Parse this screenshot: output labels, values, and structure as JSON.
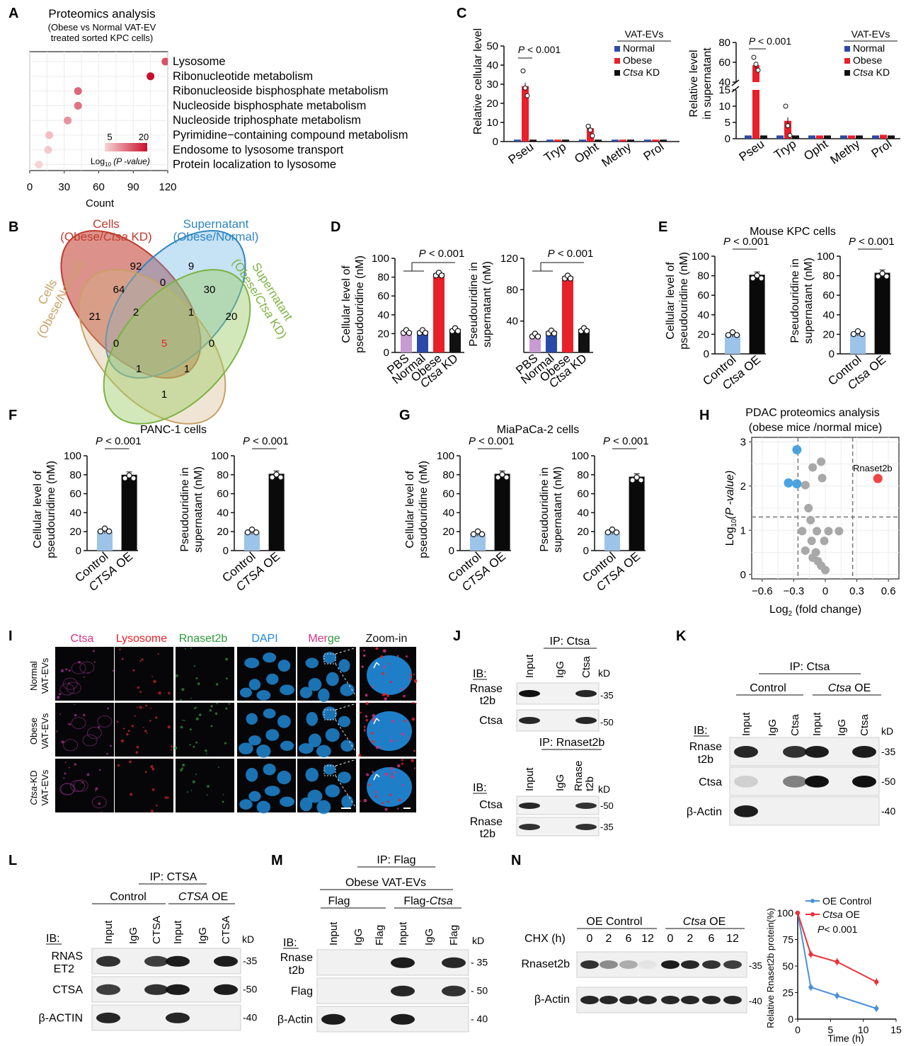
{
  "panels": {
    "A": "A",
    "B": "B",
    "C": "C",
    "D": "D",
    "E": "E",
    "F": "F",
    "G": "G",
    "H": "H",
    "I": "I",
    "J": "J",
    "K": "K",
    "L": "L",
    "M": "M",
    "N": "N"
  },
  "panelA": {
    "title": "Proteomics analysis",
    "subtitle1": "(Obese vs Normal VAT-EV",
    "subtitle2": "treated sorted KPC cells)",
    "xlabel": "Count",
    "legend_ticks": [
      "5",
      "20"
    ],
    "legend_label_pre": "Log",
    "legend_label_sub": "10",
    "legend_label_post": " (P -value)",
    "colors": {
      "low": "#f7d4d4",
      "high": "#c8102e"
    },
    "chart_data": {
      "type": "scatter",
      "xlim": [
        0,
        120
      ],
      "xticks": [
        "0",
        "30",
        "60",
        "90",
        "120"
      ],
      "categories": [
        "Lysosome",
        "Ribonucleotide metabolism",
        "Ribonucleoside bisphosphate metabolism",
        "Nucleoside bisphosphate metabolism",
        "Nucleoside triphosphate metabolism",
        "Pyrimidine−containing compound metabolism",
        "Endosome to lysosome transport",
        "Protein localization to lysosome"
      ],
      "x": [
        118,
        105,
        42,
        42,
        33,
        17,
        16,
        8
      ],
      "neglog10p": [
        14,
        20,
        12,
        11,
        8,
        4,
        3,
        2
      ]
    }
  },
  "panelB": {
    "sets": [
      {
        "label1": "Cells",
        "label2_pre": "(Obese/",
        "label2_italic": "Ctsa",
        "label2_post": " KD)",
        "color": "#c0392b"
      },
      {
        "label1": "Supernatant",
        "label2_pre": "(Obese/Normal)",
        "label2_italic": "",
        "label2_post": "",
        "color": "#2e86c1"
      },
      {
        "label1": "Cells",
        "label2_pre": "(Obese/Normal)",
        "label2_italic": "",
        "label2_post": "",
        "color": "#c8a165"
      },
      {
        "label1": "Supernatant",
        "label2_pre": "(Obese/",
        "label2_italic": "Ctsa",
        "label2_post": " KD)",
        "color": "#7cb342"
      }
    ],
    "counts": [
      "92",
      "9",
      "64",
      "0",
      "30",
      "21",
      "2",
      "1",
      "20",
      "0",
      "5",
      "0",
      "1",
      "1",
      "1"
    ]
  },
  "panelC": {
    "legend_title": "VAT-EVs",
    "legend": [
      "Normal",
      "Obese"
    ],
    "legend_kd_italic": "Ctsa",
    "legend_kd_post": " KD",
    "pval": "P < 0.001",
    "colors": {
      "normal": "#2b4aa8",
      "obese": "#e8202a",
      "kd": "#111111"
    },
    "left": {
      "ylabel": "Relative cellular level",
      "chart_data": {
        "type": "bar",
        "ylim": [
          0,
          50
        ],
        "yticks": [
          "0",
          "10",
          "20",
          "30",
          "40",
          "50"
        ],
        "categories": [
          "Pseu",
          "Tryp",
          "Opht",
          "Methy",
          "Prol"
        ],
        "series": [
          {
            "name": "Normal",
            "values": [
              1,
              1,
              1,
              1,
              1
            ]
          },
          {
            "name": "Obese",
            "values": [
              29,
              1,
              7,
              1,
              1
            ]
          },
          {
            "name": "Ctsa KD",
            "values": [
              1,
              1,
              1,
              1,
              1
            ]
          }
        ]
      }
    },
    "right": {
      "ylabel1": "Relative level",
      "ylabel2": "in supernatant",
      "chart_data": {
        "type": "bar",
        "ylim_broken": [
          [
            0,
            15
          ],
          [
            40,
            80
          ]
        ],
        "yticks": [
          "0",
          "5",
          "10",
          "15",
          "40",
          "60",
          "80"
        ],
        "categories": [
          "Pseu",
          "Tryp",
          "Opht",
          "Methy",
          "Prol"
        ],
        "series": [
          {
            "name": "Normal",
            "values": [
              1,
              1,
              1,
              1,
              1
            ]
          },
          {
            "name": "Obese",
            "values": [
              57,
              5.5,
              1,
              1,
              1.2
            ]
          },
          {
            "name": "Ctsa KD",
            "values": [
              1,
              1,
              1,
              1,
              1
            ]
          }
        ]
      }
    }
  },
  "panelD": {
    "pval": "P < 0.001",
    "categories": [
      "PBS",
      "Normal",
      "Obese"
    ],
    "cat_kd_italic": "Ctsa",
    "cat_kd_post": " KD",
    "colors": [
      "#c89bd2",
      "#2b4aa8",
      "#e8202a",
      "#111111"
    ],
    "left": {
      "ylabel1": "Cellular level of",
      "ylabel2": "pseudouridine (nM)",
      "chart_data": {
        "type": "bar",
        "ylim": [
          0,
          100
        ],
        "yticks": [
          "0",
          "20",
          "40",
          "60",
          "80",
          "100"
        ],
        "values": [
          23,
          23,
          84,
          25
        ]
      }
    },
    "right": {
      "ylabel1": "Pseudouridine in",
      "ylabel2": "supernatant (nM)",
      "chart_data": {
        "type": "bar",
        "ylim": [
          0,
          120
        ],
        "yticks": [
          "40",
          "80",
          "120"
        ],
        "values": [
          23,
          27,
          97,
          30
        ]
      }
    }
  },
  "panelE": {
    "title": "Mouse KPC cells",
    "pval": "P < 0.001",
    "cat_control": "Control",
    "cat_oe_italic": "Ctsa",
    "cat_oe_post": " OE",
    "left": {
      "ylabel1": "Cellular level of",
      "ylabel2": "pseudouridine (nM)",
      "chart_data": {
        "type": "bar",
        "ylim": [
          0,
          100
        ],
        "yticks": [
          "0",
          "20",
          "40",
          "60",
          "80",
          "100"
        ],
        "values": [
          20,
          81
        ]
      }
    },
    "right": {
      "ylabel1": "Pseudouridine in",
      "ylabel2": "supernatant (nM)",
      "chart_data": {
        "type": "bar",
        "ylim": [
          0,
          100
        ],
        "yticks": [
          "0",
          "20",
          "40",
          "60",
          "80",
          "100"
        ],
        "values": [
          21,
          83
        ]
      }
    }
  },
  "panelF": {
    "title": "PANC-1 cells",
    "pval": "P < 0.001",
    "cat_control": "Control",
    "cat_oe_italic": "CTSA",
    "cat_oe_post": " OE",
    "left": {
      "ylabel1": "Cellular level of",
      "ylabel2": "pseudouridine (nM)",
      "chart_data": {
        "type": "bar",
        "ylim": [
          0,
          100
        ],
        "yticks": [
          "0",
          "20",
          "40",
          "60",
          "80",
          "100"
        ],
        "values": [
          21,
          80
        ]
      }
    },
    "right": {
      "ylabel1": "Pseudouridine in",
      "ylabel2": "supernatant (nM)",
      "chart_data": {
        "type": "bar",
        "ylim": [
          0,
          100
        ],
        "yticks": [
          "0",
          "20",
          "40",
          "60",
          "80",
          "100"
        ],
        "values": [
          20,
          81
        ]
      }
    }
  },
  "panelG": {
    "title": "MiaPaCa-2  cells",
    "pval": "P < 0.001",
    "cat_control": "Control",
    "cat_oe_italic": "CTSA",
    "cat_oe_post": " OE",
    "left": {
      "ylabel1": "Cellular level of",
      "ylabel2": "pseudouridine (nM)",
      "chart_data": {
        "type": "bar",
        "ylim": [
          0,
          100
        ],
        "yticks": [
          "0",
          "20",
          "40",
          "60",
          "80",
          "100"
        ],
        "values": [
          18,
          81
        ]
      }
    },
    "right": {
      "ylabel1": "Pseudouridine in",
      "ylabel2": "supernatant (nM)",
      "chart_data": {
        "type": "bar",
        "ylim": [
          0,
          100
        ],
        "yticks": [
          "0",
          "20",
          "40",
          "60",
          "80",
          "100"
        ],
        "values": [
          20,
          78
        ]
      }
    }
  },
  "panelH": {
    "title1": "PDAC proteomics analysis",
    "title2": "(obese mice /normal mice)",
    "xlabel_pre": "Log",
    "xlabel_sub": "2",
    "xlabel_post": " (fold change)",
    "ylabel_pre": "Log",
    "ylabel_sub": "10",
    "ylabel_post": "(P -value)",
    "annotation": "Rnaset2b",
    "colors": {
      "down": "#4aa3df",
      "ns": "#a8a8a8",
      "up": "#ee4444"
    },
    "chart_data": {
      "type": "scatter",
      "xlim": [
        -0.7,
        0.7
      ],
      "ylim": [
        -0.1,
        3.1
      ],
      "xticks": [
        "−0.6",
        "−0.3",
        "0",
        "0.3",
        "0.6"
      ],
      "yticks": [
        "0",
        "1",
        "2",
        "3"
      ],
      "thresholds": {
        "x": [
          -0.26,
          0.26
        ],
        "y": 1.3
      },
      "points": [
        {
          "x": -0.27,
          "y": 2.82,
          "group": "down"
        },
        {
          "x": -0.35,
          "y": 2.07,
          "group": "down"
        },
        {
          "x": -0.27,
          "y": 2.05,
          "group": "down"
        },
        {
          "x": 0.5,
          "y": 2.17,
          "group": "up"
        },
        {
          "x": -0.12,
          "y": 2.42,
          "group": "ns"
        },
        {
          "x": -0.04,
          "y": 2.55,
          "group": "ns"
        },
        {
          "x": -0.19,
          "y": 2.02,
          "group": "ns"
        },
        {
          "x": -0.03,
          "y": 2.18,
          "group": "ns"
        },
        {
          "x": -0.16,
          "y": 1.5,
          "group": "ns"
        },
        {
          "x": -0.14,
          "y": 1.23,
          "group": "ns"
        },
        {
          "x": -0.22,
          "y": 0.98,
          "group": "ns"
        },
        {
          "x": -0.08,
          "y": 0.98,
          "group": "ns"
        },
        {
          "x": 0.03,
          "y": 0.98,
          "group": "ns"
        },
        {
          "x": 0.13,
          "y": 0.98,
          "group": "ns"
        },
        {
          "x": -0.13,
          "y": 0.76,
          "group": "ns"
        },
        {
          "x": -0.01,
          "y": 0.76,
          "group": "ns"
        },
        {
          "x": -0.19,
          "y": 0.54,
          "group": "ns"
        },
        {
          "x": -0.09,
          "y": 0.5,
          "group": "ns"
        },
        {
          "x": -0.12,
          "y": 0.38,
          "group": "ns"
        },
        {
          "x": -0.07,
          "y": 0.3,
          "group": "ns"
        },
        {
          "x": -0.04,
          "y": 0.2,
          "group": "ns"
        },
        {
          "x": 0.0,
          "y": 0.1,
          "group": "ns"
        }
      ]
    }
  },
  "panelI": {
    "headers": [
      "Ctsa",
      "Lysosome",
      "Rnaset2b",
      "DAPI",
      "Mer",
      "ge",
      "Zoom-in"
    ],
    "header_colors": [
      "#d63384",
      "#e8202a",
      "#2e9b3e",
      "#1e88e5",
      "#d63384",
      "#2e9b3e",
      "#111111"
    ],
    "rows": [
      {
        "l1_italic": "",
        "l1": "Normal",
        "l2": "VAT-EVs"
      },
      {
        "l1_italic": "",
        "l1": "Obese",
        "l2": "VAT-EVs"
      },
      {
        "l1_italic": "Ctsa",
        "l1": "-KD",
        "l2": "VAT-EVs"
      }
    ]
  },
  "panelJ": {
    "top": {
      "ip": "IP: Ctsa",
      "lanes": [
        "Input",
        "IgG",
        "Ctsa"
      ],
      "ib": "IB:",
      "bands": [
        {
          "l1": "Rnase",
          "l2": "t2b",
          "kd": "-35"
        },
        {
          "l1": "Ctsa",
          "l2": "",
          "kd": "-50"
        }
      ]
    },
    "bottom": {
      "ip": "IP: Rnaset2b",
      "lanes": [
        "Input",
        "IgG"
      ],
      "lane3_l1": "Rnase",
      "lane3_l2": "t2b",
      "ib": "IB:",
      "bands": [
        {
          "l1": "Ctsa",
          "l2": "",
          "kd": "-50"
        },
        {
          "l1": "Rnase",
          "l2": "t2b",
          "kd": "-35"
        }
      ]
    },
    "kd": "kD"
  },
  "panelK": {
    "ip": "IP: Ctsa",
    "group1": "Control",
    "group2_italic": "Ctsa",
    "group2_post": " OE",
    "lanes": [
      "Input",
      "IgG",
      "Ctsa",
      "Input",
      "IgG",
      "Ctsa"
    ],
    "ib": "IB:",
    "kd": "kD",
    "bands": [
      {
        "l1": "Rnase",
        "l2": "t2b",
        "kd": "-35"
      },
      {
        "l1": "Ctsa",
        "l2": "",
        "kd": "-50"
      },
      {
        "l1": "β-Actin",
        "l2": "",
        "kd": "-40"
      }
    ]
  },
  "panelL": {
    "ip": "IP: CTSA",
    "group1": "Control",
    "group2_italic": "CTSA",
    "group2_post": " OE",
    "lanes": [
      "Input",
      "IgG",
      "CTSA",
      "Input",
      "IgG",
      "CTSA"
    ],
    "ib": "IB:",
    "kd": "kD",
    "bands": [
      {
        "l1": "RNAS",
        "l2": "ET2",
        "kd": "-35"
      },
      {
        "l1": "CTSA",
        "l2": "",
        "kd": "-50"
      },
      {
        "l1": "β-ACTIN",
        "l2": "",
        "kd": "-40"
      }
    ]
  },
  "panelM": {
    "ip": "IP: Flag",
    "header": "Obese VAT-EVs",
    "group1": "Flag",
    "group2_pre": "Flag-",
    "group2_italic": "Ctsa",
    "lanes": [
      "Input",
      "IgG",
      "Flag",
      "Input",
      "IgG",
      "Flag"
    ],
    "ib": "IB:",
    "kd": "kD",
    "bands": [
      {
        "l1": "Rnase",
        "l2": "t2b",
        "kd": "- 35"
      },
      {
        "l1": "Flag",
        "l2": "",
        "kd": "- 50"
      },
      {
        "l1": "β-Actin",
        "l2": "",
        "kd": "- 40"
      }
    ]
  },
  "panelN": {
    "group1": "OE Control",
    "group2_italic": "Ctsa",
    "group2_post": " OE",
    "chx_label": "CHX (h)",
    "times": [
      "0",
      "2",
      "6",
      "12",
      "0",
      "2",
      "6",
      "12"
    ],
    "bands": [
      {
        "label": "Rnaset2b",
        "kd": "-35"
      },
      {
        "label": "β-Actin",
        "kd": "-40"
      }
    ],
    "plot": {
      "legend": [
        "OE Control"
      ],
      "legend2_italic": "Ctsa",
      "legend2_post": " OE",
      "pval": "P< 0.001",
      "ylabel": "Relative Rnaset2b protein(%)",
      "xlabel": "Time (h)",
      "colors": {
        "control": "#4a90d9",
        "oe": "#e8333a"
      },
      "chart_data": {
        "type": "line",
        "xlim": [
          0,
          15
        ],
        "ylim": [
          0,
          100
        ],
        "xticks": [
          "0",
          "5",
          "10",
          "15"
        ],
        "yticks": [
          "0",
          "25",
          "50",
          "75",
          "100"
        ],
        "x": [
          0,
          2,
          6,
          12
        ],
        "series": [
          {
            "name": "OE Control",
            "values": [
              100,
              30,
              22,
              10
            ]
          },
          {
            "name": "Ctsa OE",
            "values": [
              100,
              61,
              54,
              35
            ]
          }
        ]
      }
    }
  }
}
